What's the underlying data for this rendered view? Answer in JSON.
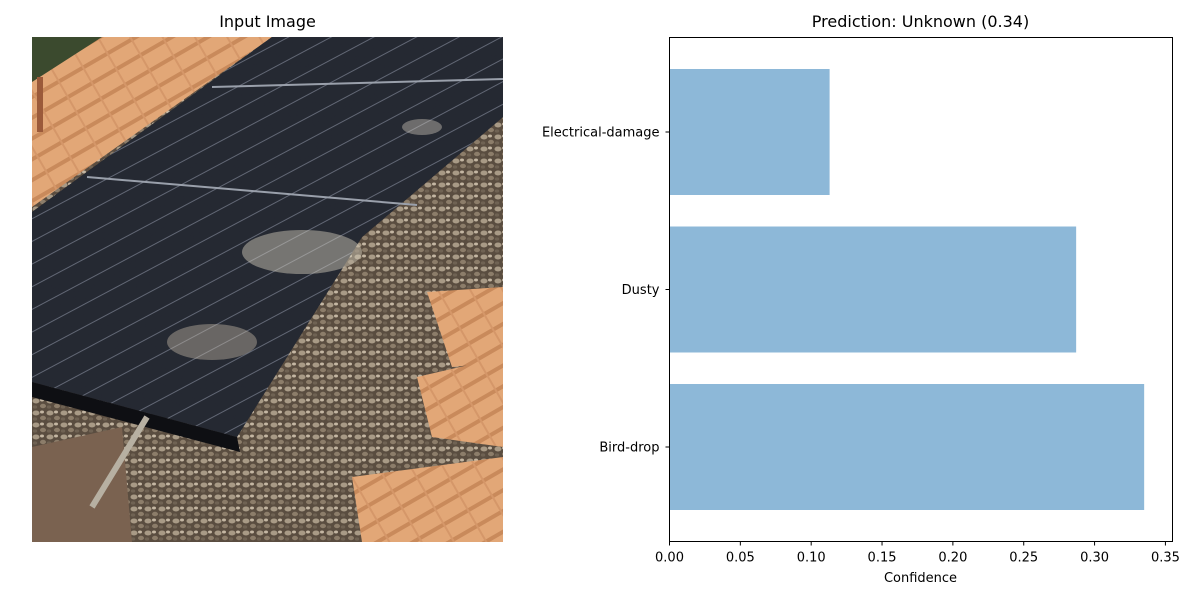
{
  "left_panel": {
    "title": "Input Image"
  },
  "right_panel": {
    "title": "Prediction: Unknown (0.34)"
  },
  "colors": {
    "bar": "#8db8d8"
  },
  "chart_data": {
    "type": "bar",
    "orientation": "horizontal",
    "title": "Prediction: Unknown (0.34)",
    "xlabel": "Confidence",
    "ylabel": "",
    "categories": [
      "Bird-drop",
      "Dusty",
      "Electrical-damage"
    ],
    "values": [
      0.335,
      0.287,
      0.113
    ],
    "xlim": [
      0,
      0.355
    ],
    "xticks": [
      0.0,
      0.05,
      0.1,
      0.15,
      0.2,
      0.25,
      0.3,
      0.35
    ],
    "xtick_labels": [
      "0.00",
      "0.05",
      "0.10",
      "0.15",
      "0.20",
      "0.25",
      "0.30",
      "0.35"
    ],
    "grid": false,
    "legend": "none"
  }
}
